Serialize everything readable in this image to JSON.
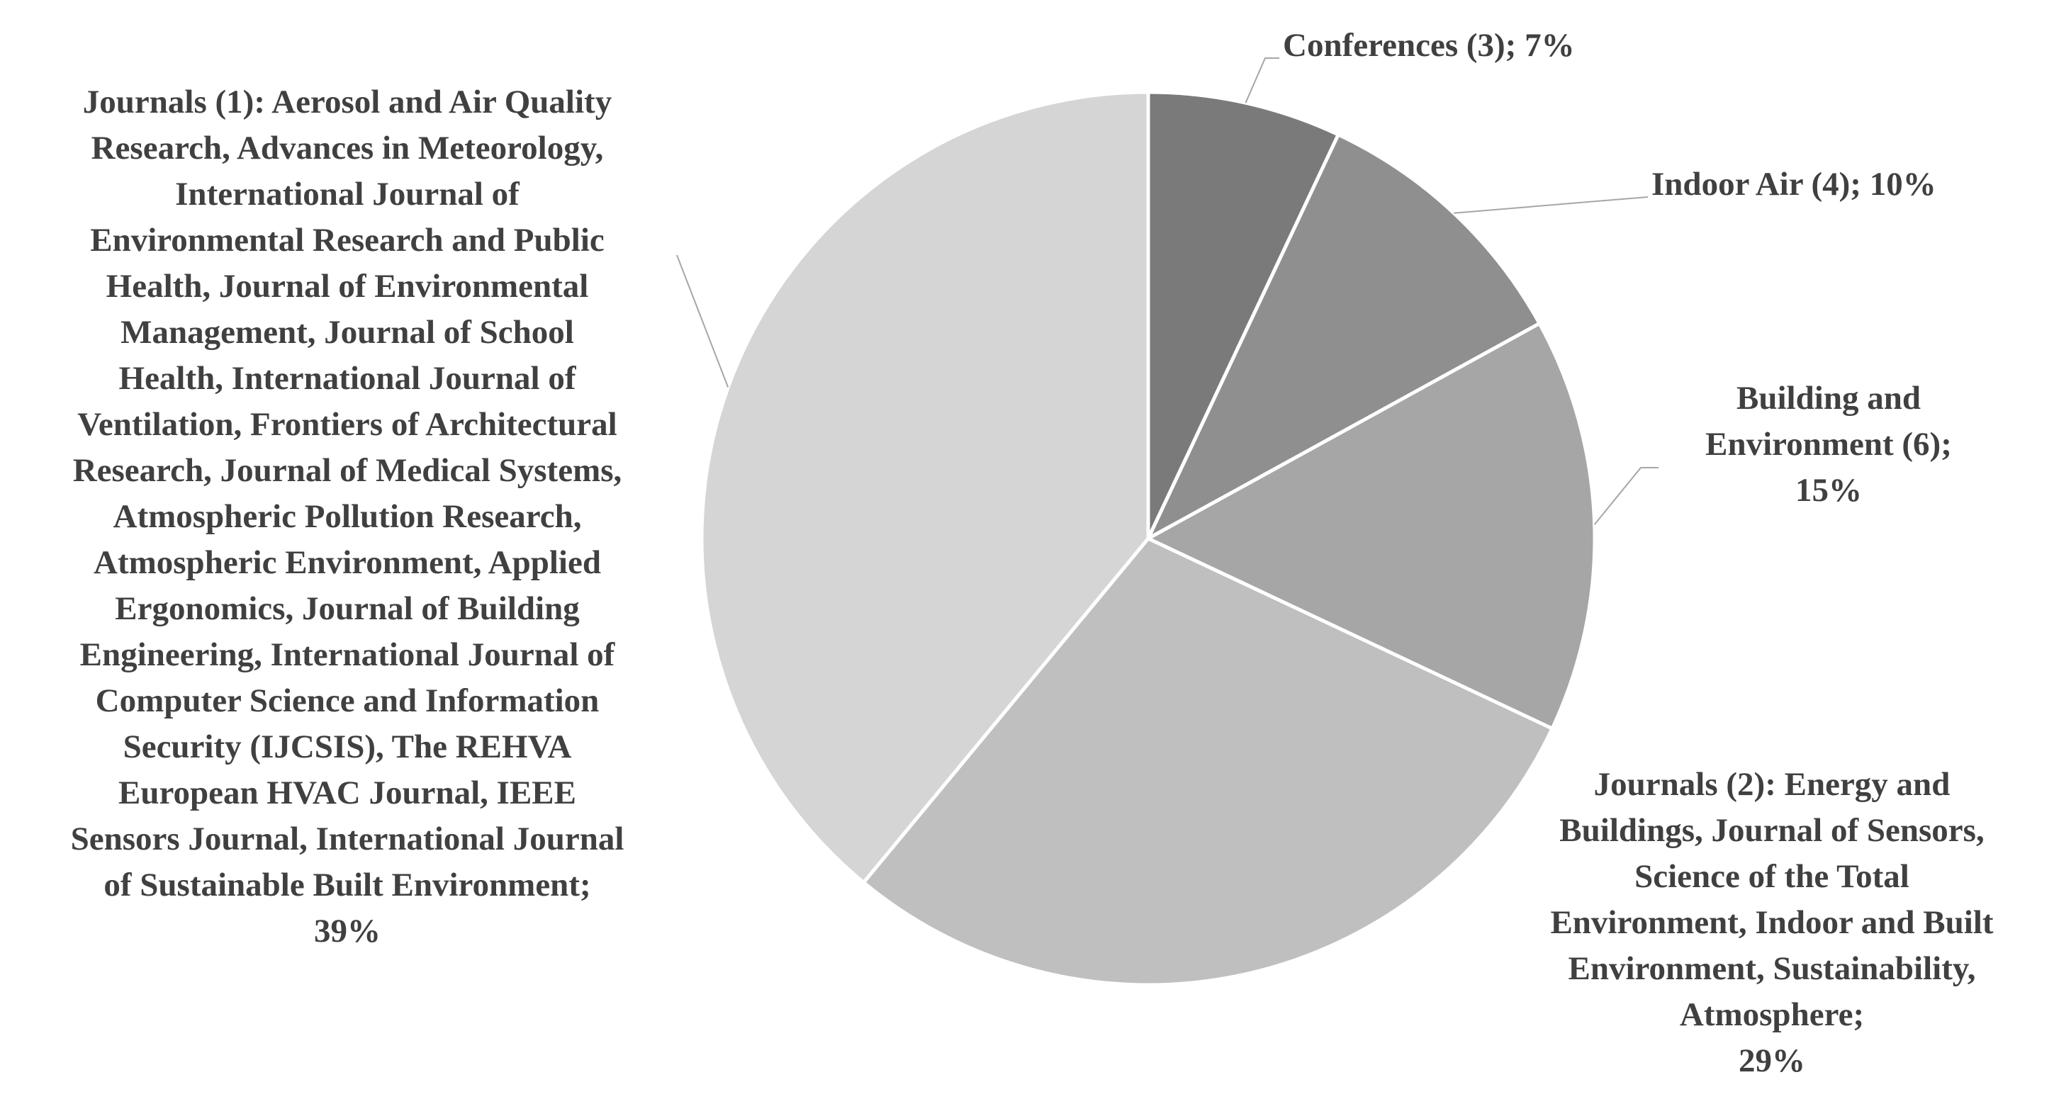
{
  "chart_data": {
    "type": "pie",
    "start_angle_deg": 0,
    "direction": "clockwise",
    "slices": [
      {
        "label": "Conferences (3); 7%",
        "value": 7,
        "color": "#7a7a7a"
      },
      {
        "label": "Indoor Air (4); 10%",
        "value": 10,
        "color": "#8f8f8f"
      },
      {
        "label": "Building and\nEnvironment (6);\n15%",
        "value": 15,
        "color": "#a6a6a6"
      },
      {
        "label": "Journals (2): Energy and\nBuildings, Journal of Sensors,\nScience of the Total\nEnvironment, Indoor and Built\nEnvironment, Sustainability,\nAtmosphere;\n29%",
        "value": 29,
        "color": "#bfbfbf"
      },
      {
        "label": "Journals (1): Aerosol and Air Quality\nResearch, Advances in Meteorology,\nInternational Journal of\nEnvironmental Research and Public\nHealth, Journal of Environmental\nManagement, Journal of School\nHealth, International Journal of\nVentilation, Frontiers of Architectural\nResearch, Journal of Medical Systems,\nAtmospheric Pollution Research,\nAtmospheric Environment, Applied\nErgonomics, Journal of Building\nEngineering, International Journal of\nComputer Science and Information\nSecurity (IJCSIS), The REHVA\nEuropean HVAC Journal, IEEE\nSensors Journal, International Journal\nof Sustainable Built Environment;\n39%",
        "value": 39,
        "color": "#d5d5d5"
      }
    ],
    "legend": "none",
    "data_labels": "outside-with-leader-lines"
  }
}
